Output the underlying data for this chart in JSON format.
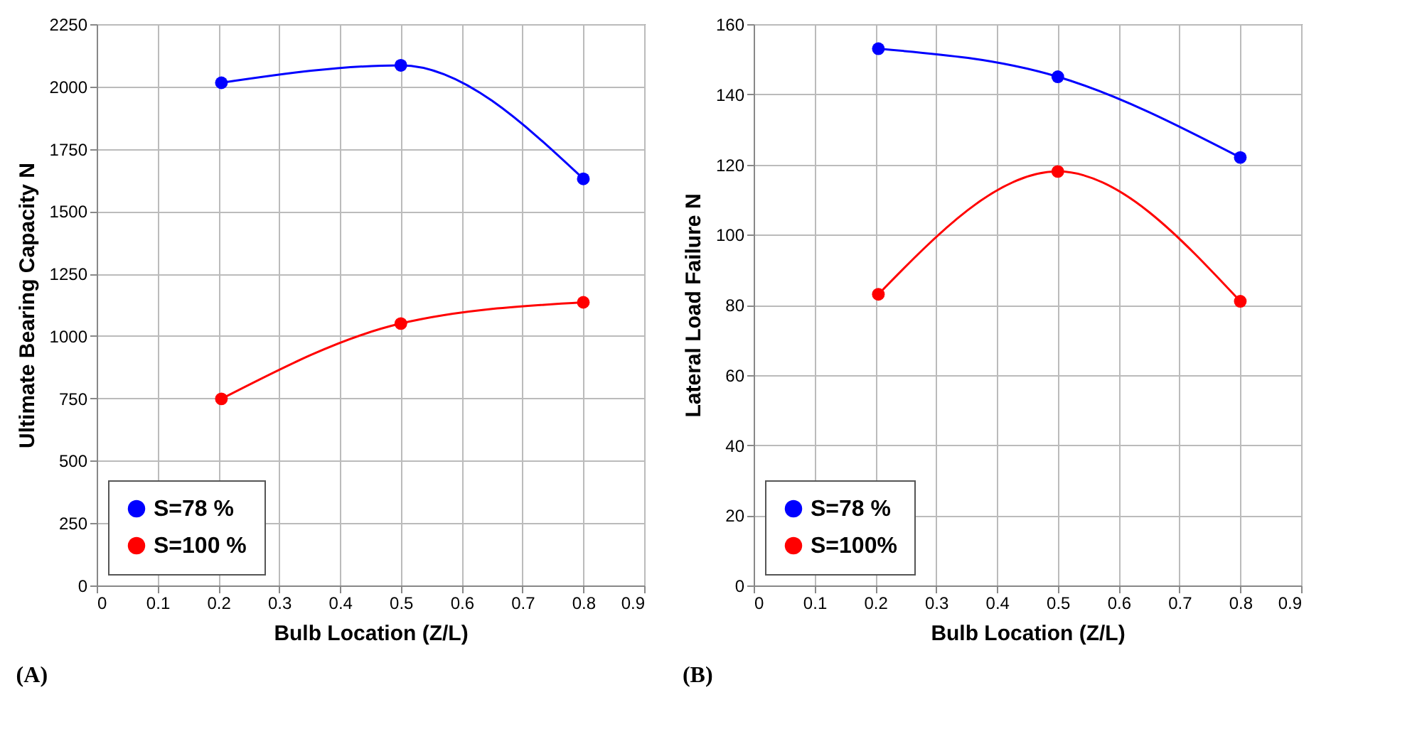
{
  "chart_data": [
    {
      "type": "line",
      "xlabel": "Bulb Location (Z/L)",
      "ylabel": "Ultimate Bearing Capacity N",
      "annotations": [
        "(A)"
      ],
      "x": [
        0.205,
        0.5,
        0.8
      ],
      "series": [
        {
          "name": "S=78 %",
          "color": "#0000ff",
          "values": [
            2015,
            2085,
            1630
          ]
        },
        {
          "name": "S=100 %",
          "color": "#ff0000",
          "values": [
            748,
            1050,
            1135
          ]
        }
      ],
      "xlim": [
        0,
        0.9
      ],
      "xticks": [
        0,
        0.1,
        0.2,
        0.3,
        0.4,
        0.5,
        0.6,
        0.7,
        0.8,
        0.9
      ],
      "ylim": [
        0,
        2250
      ],
      "yticks": [
        0,
        250,
        500,
        750,
        1000,
        1250,
        1500,
        1750,
        2000,
        2250
      ],
      "grid": true,
      "legend": "bottom left",
      "marker": "circle",
      "line_style": "solid"
    },
    {
      "type": "line",
      "xlabel": "Bulb Location (Z/L)",
      "ylabel": "Lateral Load Failure N",
      "annotations": [
        "(B)"
      ],
      "x": [
        0.205,
        0.5,
        0.8
      ],
      "series": [
        {
          "name": "S=78 %",
          "color": "#0000ff",
          "values": [
            153,
            145,
            122
          ]
        },
        {
          "name": "S=100%",
          "color": "#ff0000",
          "values": [
            83,
            118,
            81
          ]
        }
      ],
      "xlim": [
        0,
        0.9
      ],
      "xticks": [
        0,
        0.1,
        0.2,
        0.3,
        0.4,
        0.5,
        0.6,
        0.7,
        0.8,
        0.9
      ],
      "ylim": [
        0,
        160
      ],
      "yticks": [
        0,
        20,
        40,
        60,
        80,
        100,
        120,
        140,
        160
      ],
      "grid": true,
      "legend": "bottom left",
      "marker": "circle",
      "line_style": "solid"
    }
  ]
}
